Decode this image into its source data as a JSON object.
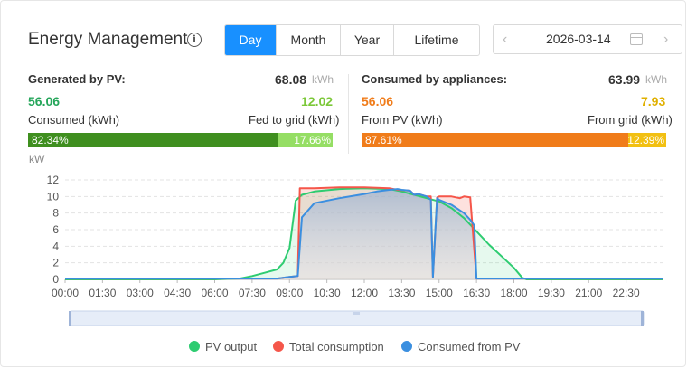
{
  "header": {
    "title": "Energy Management",
    "info_icon": "info-circle-icon",
    "tabs": [
      {
        "label": "Day",
        "active": true
      },
      {
        "label": "Month",
        "active": false
      },
      {
        "label": "Year",
        "active": false
      },
      {
        "label": "Lifetime",
        "active": false
      }
    ],
    "date": "2026-03-14",
    "prev_icon": "chevron-left-icon",
    "next_icon": "chevron-right-icon",
    "calendar_icon": "calendar-icon"
  },
  "generated": {
    "label": "Generated by PV:",
    "total": "68.08",
    "unit": "kWh",
    "left_value": "56.06",
    "left_label": "Consumed (kWh)",
    "right_value": "12.02",
    "right_label": "Fed to grid (kWh)",
    "left_pct": "82.34%",
    "right_pct": "17.66%",
    "left_frac": 82.34,
    "left_color": "#3f8f1f",
    "right_color": "#95de64"
  },
  "consumed": {
    "label": "Consumed by appliances:",
    "total": "63.99",
    "unit": "kWh",
    "left_value": "56.06",
    "left_label": "From PV (kWh)",
    "right_value": "7.93",
    "right_label": "From grid (kWh)",
    "left_pct": "87.61%",
    "right_pct": "12.39%",
    "left_frac": 87.61,
    "left_color": "#f07c1a",
    "right_color": "#f2c012"
  },
  "chart_data": {
    "type": "area",
    "ylabel": "kW",
    "ylim": [
      0,
      12
    ],
    "yticks": [
      "0",
      "2",
      "4",
      "6",
      "8",
      "10",
      "12"
    ],
    "xlim": [
      0,
      1440
    ],
    "xticks": [
      "00:00",
      "01:30",
      "03:00",
      "04:30",
      "06:00",
      "07:30",
      "09:00",
      "10:30",
      "12:00",
      "13:30",
      "15:00",
      "16:30",
      "18:00",
      "19:30",
      "21:00",
      "22:30"
    ],
    "grid": true,
    "legend_position": "bottom",
    "series": [
      {
        "name": "PV output",
        "color": "#2ecc71",
        "x": [
          0,
          360,
          420,
          450,
          480,
          510,
          525,
          540,
          555,
          570,
          600,
          660,
          720,
          780,
          810,
          840,
          870,
          900,
          930,
          960,
          990,
          1020,
          1050,
          1080,
          1100,
          1110,
          1140,
          1200,
          1260,
          1320,
          1380,
          1440
        ],
        "y": [
          0,
          0,
          0.1,
          0.4,
          0.8,
          1.2,
          2.0,
          3.8,
          9.5,
          10.2,
          10.6,
          10.9,
          11.0,
          10.9,
          10.6,
          10.2,
          9.8,
          9.4,
          8.6,
          7.4,
          5.8,
          4.2,
          2.8,
          1.4,
          0.2,
          0,
          0,
          0,
          0,
          0,
          0,
          0
        ]
      },
      {
        "name": "Total consumption",
        "color": "#f5564a",
        "x": [
          0,
          360,
          510,
          540,
          560,
          565,
          600,
          660,
          720,
          780,
          800,
          830,
          840,
          850,
          870,
          880,
          885,
          895,
          900,
          930,
          950,
          960,
          975,
          990,
          1020,
          1080,
          1200,
          1440
        ],
        "y": [
          0.1,
          0.1,
          0.1,
          0.3,
          0.4,
          11.0,
          11.0,
          11.1,
          11.1,
          11.0,
          10.8,
          10.7,
          10.2,
          10.3,
          10.0,
          10.0,
          0.3,
          9.9,
          10.0,
          10.0,
          9.8,
          10.0,
          9.9,
          0.1,
          0.1,
          0.1,
          0.1,
          0.1
        ]
      },
      {
        "name": "Consumed from PV",
        "color": "#3b8fe0",
        "x": [
          0,
          360,
          510,
          540,
          560,
          570,
          600,
          660,
          720,
          750,
          780,
          800,
          810,
          830,
          840,
          850,
          870,
          880,
          885,
          895,
          900,
          930,
          960,
          975,
          985,
          990,
          1020,
          1080,
          1200,
          1440
        ],
        "y": [
          0.1,
          0.1,
          0.1,
          0.3,
          0.4,
          7.5,
          9.2,
          9.8,
          10.3,
          10.6,
          10.8,
          10.9,
          10.8,
          10.7,
          10.2,
          10.3,
          10.0,
          9.6,
          0.3,
          9.8,
          9.6,
          9.0,
          8.0,
          7.2,
          6.5,
          0.1,
          0.1,
          0.1,
          0.1,
          0.1
        ]
      }
    ]
  }
}
